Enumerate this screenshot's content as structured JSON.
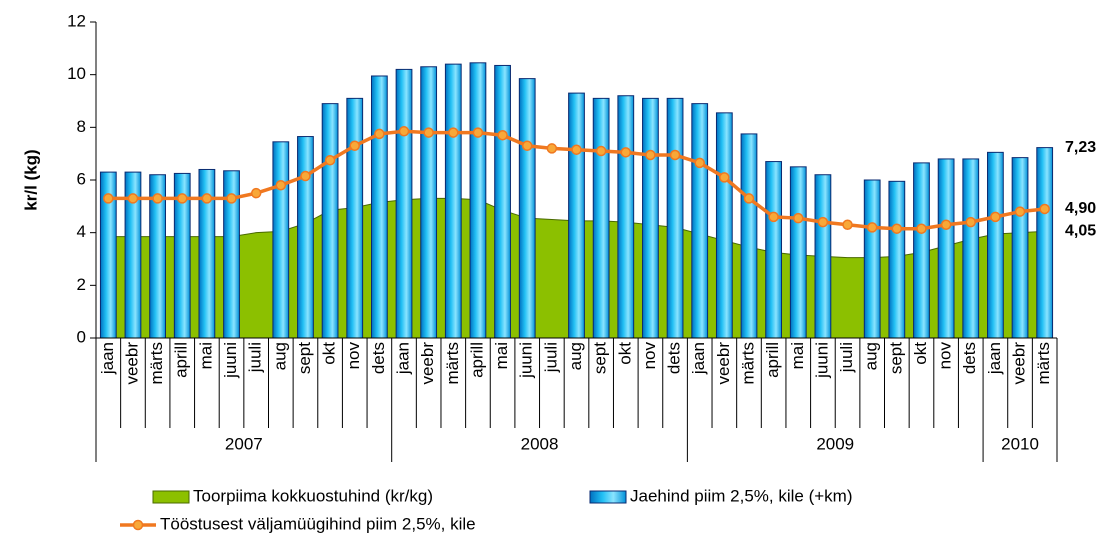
{
  "chart_data": {
    "type": "bar",
    "y_label": "kr/l (kg)",
    "ylim": [
      0,
      12
    ],
    "yticks": [
      0,
      2,
      4,
      6,
      8,
      10,
      12
    ],
    "groups": [
      {
        "label": "2007",
        "categories": [
          "jaan",
          "veebr",
          "märts",
          "aprill",
          "mai",
          "juuni",
          "juuli",
          "aug",
          "sept",
          "okt",
          "nov",
          "dets"
        ]
      },
      {
        "label": "2008",
        "categories": [
          "jaan",
          "veebr",
          "märts",
          "aprill",
          "mai",
          "juuni",
          "juuli",
          "aug",
          "sept",
          "okt",
          "nov",
          "dets"
        ]
      },
      {
        "label": "2009",
        "categories": [
          "jaan",
          "veebr",
          "märts",
          "aprill",
          "mai",
          "juuni",
          "juuli",
          "aug",
          "sept",
          "okt",
          "nov",
          "dets"
        ]
      },
      {
        "label": "2010",
        "categories": [
          "jaan",
          "veebr",
          "märts"
        ]
      }
    ],
    "series": [
      {
        "name": "Toorpiima kokkuostuhind (kr/kg)",
        "type": "area",
        "color": "#8cc000",
        "label_color": "#99cc00",
        "values": [
          3.85,
          3.85,
          3.85,
          3.85,
          3.85,
          3.85,
          4.0,
          4.05,
          4.35,
          4.85,
          4.95,
          5.15,
          5.25,
          5.3,
          5.3,
          5.25,
          4.85,
          4.55,
          4.5,
          4.45,
          4.45,
          4.4,
          4.3,
          4.2,
          3.95,
          3.7,
          3.45,
          3.25,
          3.15,
          3.1,
          3.05,
          3.05,
          3.1,
          3.25,
          3.5,
          3.75,
          3.95,
          4.0,
          4.05
        ],
        "value_labels": [
          null,
          null,
          null,
          null,
          null,
          null,
          null,
          null,
          null,
          null,
          null,
          null,
          null,
          null,
          null,
          null,
          null,
          null,
          null,
          null,
          null,
          null,
          null,
          null,
          null,
          null,
          null,
          null,
          null,
          null,
          null,
          null,
          null,
          null,
          null,
          null,
          null,
          null,
          "4,05"
        ]
      },
      {
        "name": "Jaehind piim 2,5%, kile (+km)",
        "type": "bar",
        "color": "#22c0f4",
        "label_color": "#4f7fef",
        "values": [
          6.3,
          6.3,
          6.2,
          6.25,
          6.4,
          6.35,
          null,
          7.45,
          7.65,
          8.9,
          9.1,
          9.95,
          10.2,
          10.3,
          10.4,
          10.45,
          10.35,
          9.85,
          null,
          9.3,
          9.1,
          9.2,
          9.1,
          9.1,
          8.9,
          8.55,
          7.75,
          6.7,
          6.5,
          6.2,
          null,
          6.0,
          5.95,
          6.65,
          6.8,
          6.8,
          7.05,
          6.85,
          7.23
        ],
        "value_labels": [
          null,
          null,
          null,
          null,
          null,
          null,
          null,
          null,
          null,
          null,
          null,
          null,
          null,
          null,
          null,
          null,
          null,
          null,
          null,
          null,
          null,
          null,
          null,
          null,
          null,
          null,
          null,
          null,
          null,
          null,
          null,
          null,
          null,
          null,
          null,
          null,
          null,
          null,
          "7,23"
        ]
      },
      {
        "name": "Tööstusest väljamüügihind piim 2,5%, kile",
        "type": "line",
        "color": "#f07820",
        "label_color": "#f07820",
        "values": [
          5.3,
          5.3,
          5.3,
          5.3,
          5.3,
          5.3,
          5.5,
          5.8,
          6.15,
          6.75,
          7.3,
          7.75,
          7.85,
          7.8,
          7.8,
          7.8,
          7.7,
          7.3,
          7.2,
          7.15,
          7.1,
          7.05,
          6.95,
          6.95,
          6.65,
          6.1,
          5.3,
          4.6,
          4.55,
          4.4,
          4.3,
          4.2,
          4.15,
          4.15,
          4.3,
          4.4,
          4.6,
          4.8,
          4.9
        ],
        "value_labels": [
          null,
          null,
          null,
          null,
          null,
          null,
          null,
          null,
          null,
          null,
          null,
          null,
          null,
          null,
          null,
          null,
          null,
          null,
          null,
          null,
          null,
          null,
          null,
          null,
          null,
          null,
          null,
          null,
          null,
          null,
          null,
          null,
          null,
          null,
          null,
          null,
          null,
          null,
          "4,90"
        ]
      }
    ]
  }
}
